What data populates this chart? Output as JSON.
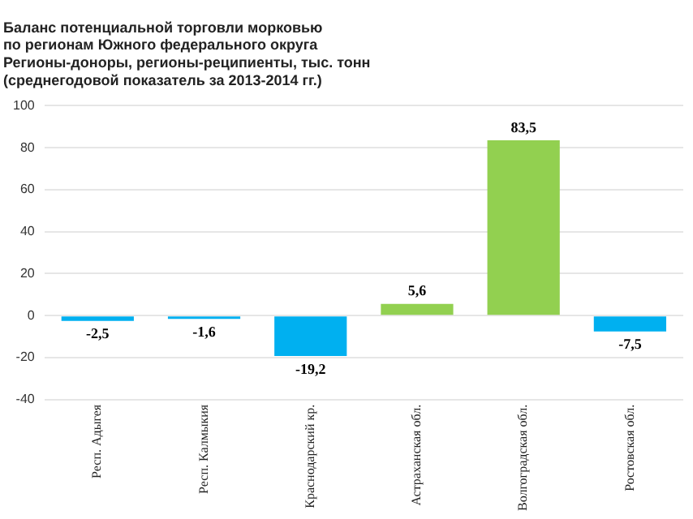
{
  "chart_data": {
    "type": "bar",
    "title": "Баланс потенциальной торговли морковью\nпо регионам Южного федерального округа\nРегионы-доноры, регионы-реципиенты, тыс. тонн\n(среднегодовой показатель за 2013-2014 гг.)",
    "categories": [
      "Респ. Адыгея",
      "Респ. Калмыкия",
      "Краснодарский кр.",
      "Астраханская обл.",
      "Волгоградская обл.",
      "Ростовская обл."
    ],
    "values": [
      -2.5,
      -1.6,
      -19.2,
      5.6,
      83.5,
      -7.5
    ],
    "value_labels": [
      "-2,5",
      "-1,6",
      "-19,2",
      "5,6",
      "83,5",
      "-7,5"
    ],
    "colors": [
      "#00b0f0",
      "#00b0f0",
      "#00b0f0",
      "#92d050",
      "#92d050",
      "#00b0f0"
    ],
    "ylim": [
      -40,
      100
    ],
    "yticks": [
      -40,
      -20,
      0,
      20,
      40,
      60,
      80,
      100
    ],
    "grid": "y"
  }
}
